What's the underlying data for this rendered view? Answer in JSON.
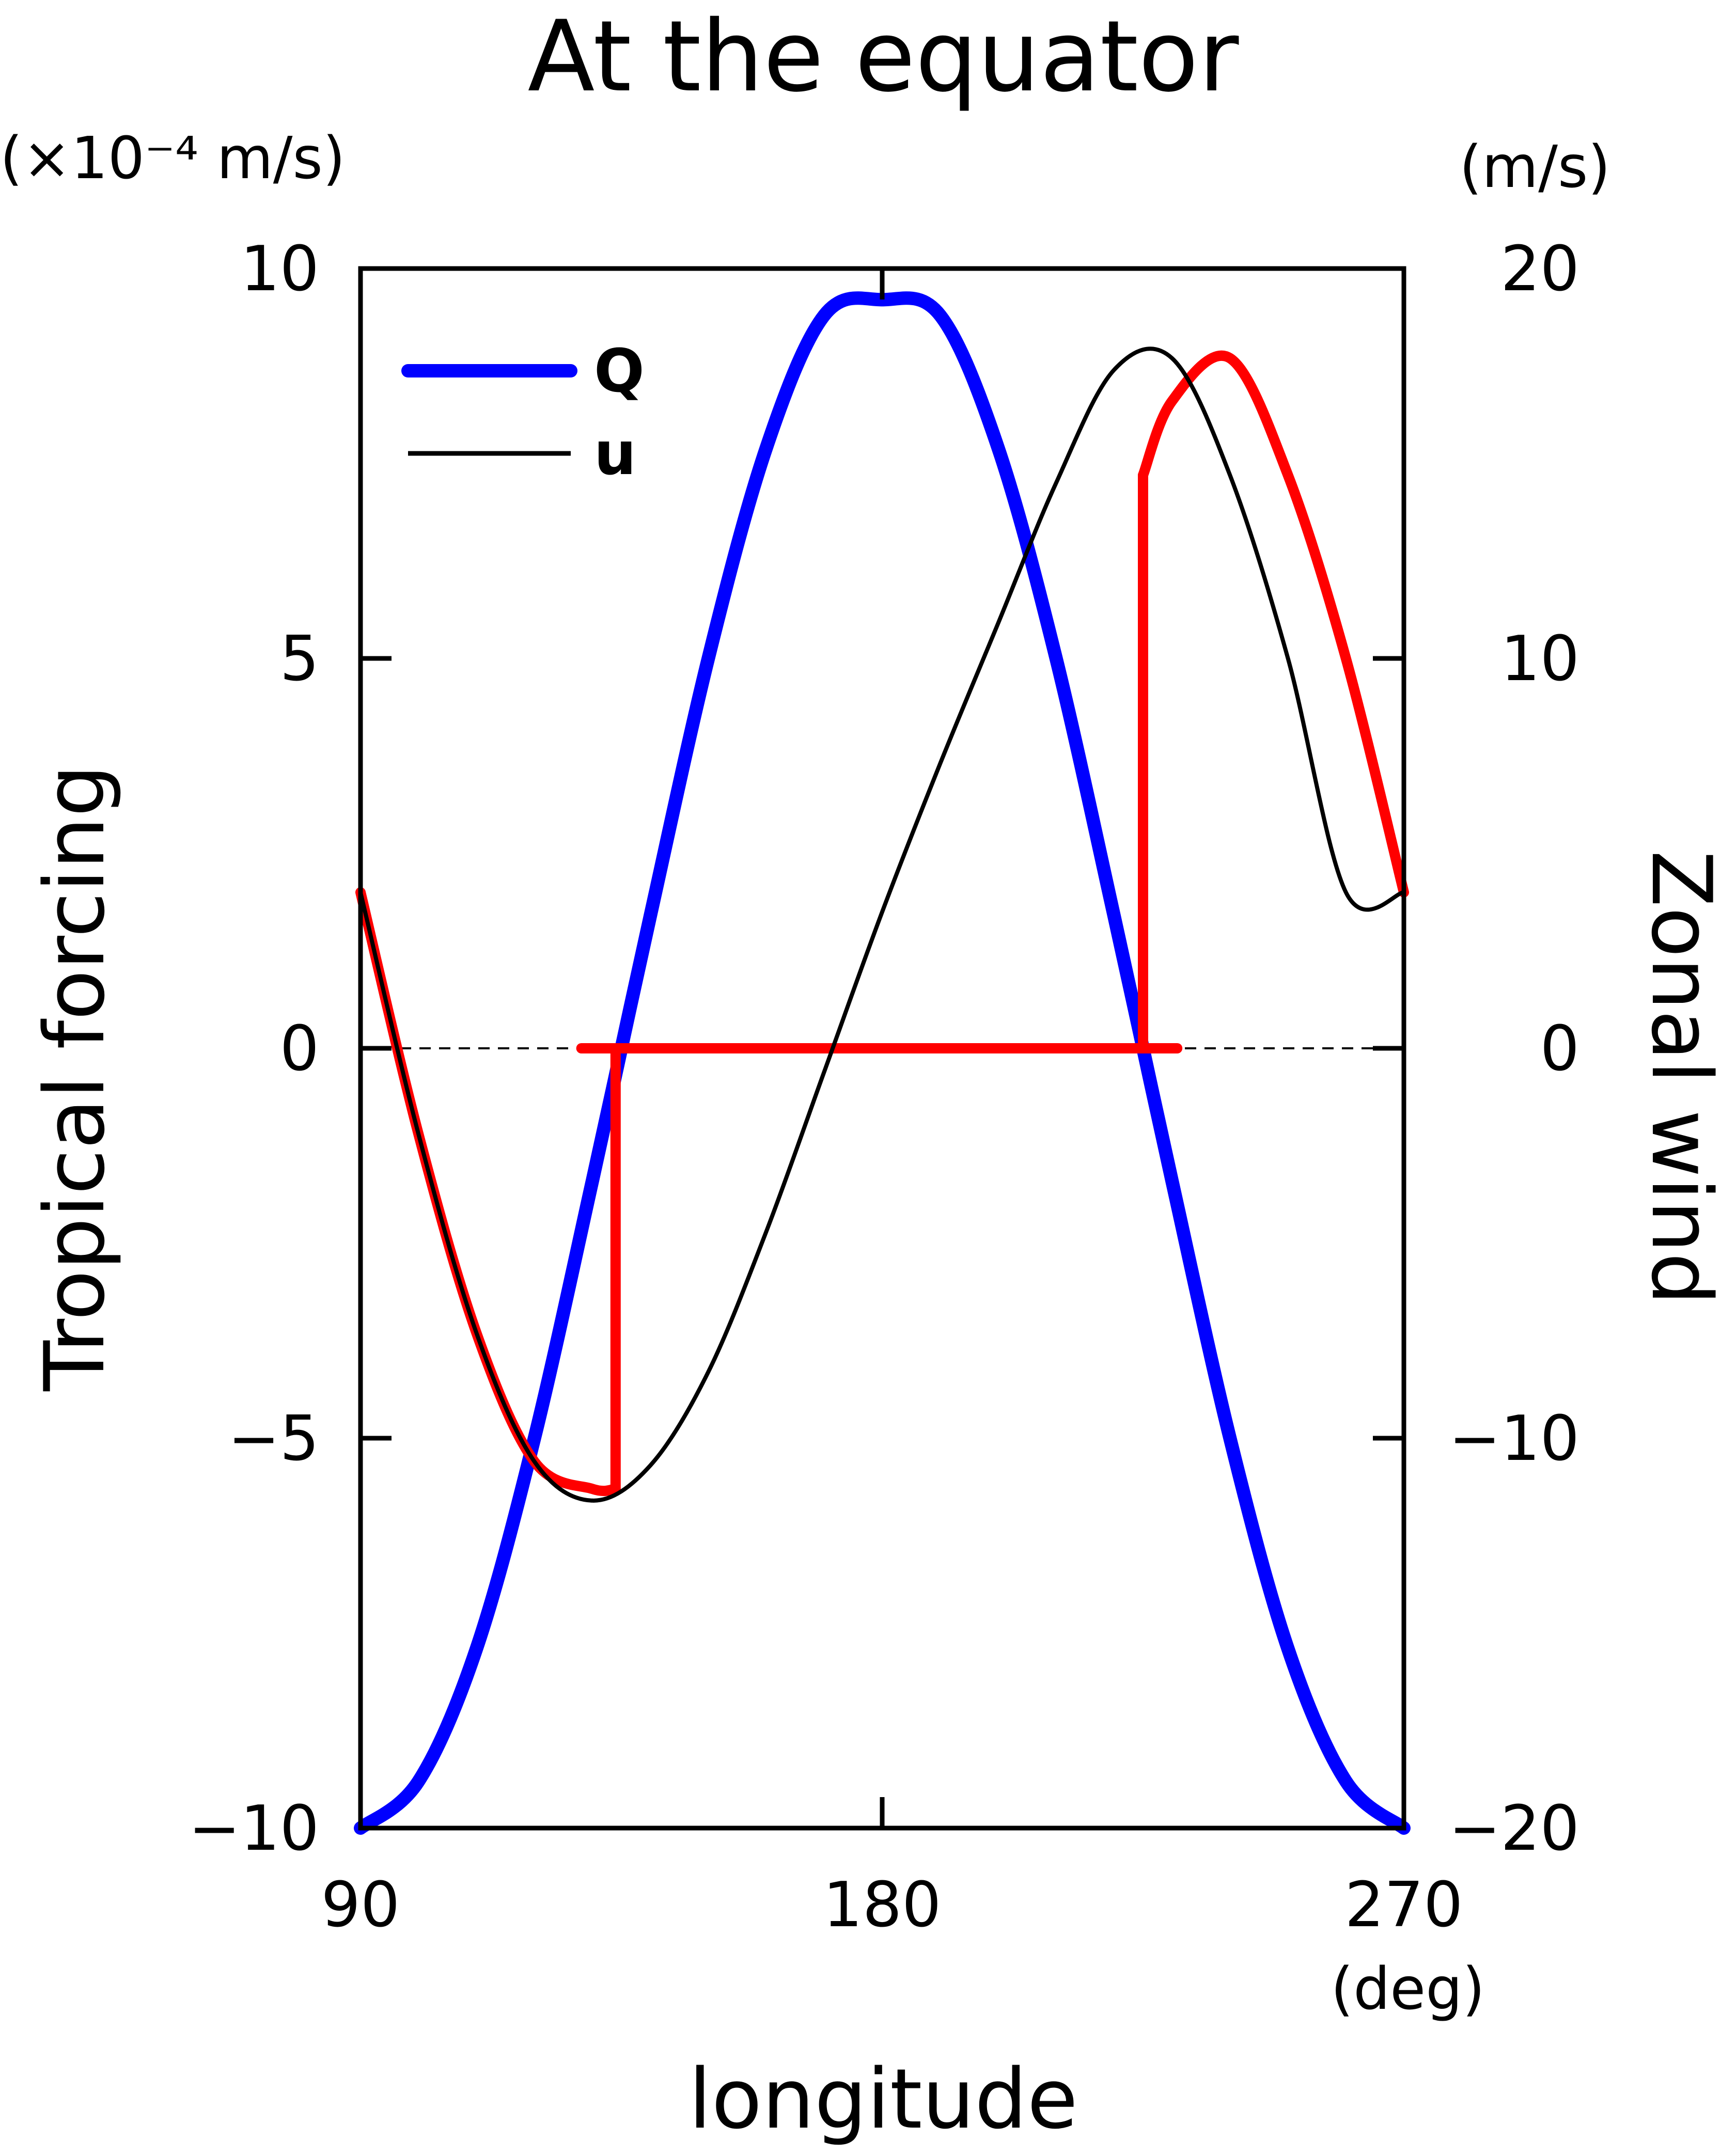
{
  "chart_data": {
    "type": "line",
    "title": "At the equator",
    "xlabel": "longitude",
    "x_unit": "(deg)",
    "ylabel_left": "Tropical forcing",
    "y_unit_left": "(×10⁻⁴ m/s)",
    "ylabel_right": "Zonal wind",
    "y_unit_right": "(m/s)",
    "xlim": [
      90,
      270
    ],
    "ylim_left": [
      -10,
      10
    ],
    "ylim_right": [
      -20,
      20
    ],
    "x_ticks": [
      "90",
      "180",
      "270"
    ],
    "y_ticks_left": [
      "10",
      "5",
      "0",
      "−5",
      "−10"
    ],
    "y_ticks_right": [
      "20",
      "10",
      "0",
      "−10",
      "−20"
    ],
    "legend_position": "top-left",
    "zero_line": "dashed",
    "series": [
      {
        "name": "Q",
        "axis": "left",
        "color": "#0000ff",
        "x": [
          90,
          100,
          110,
          120,
          130,
          135,
          140,
          150,
          160,
          170,
          180,
          190,
          200,
          210,
          220,
          225,
          230,
          240,
          250,
          260,
          270
        ],
        "y": [
          -10,
          -9.4,
          -7.7,
          -5.0,
          -1.7,
          0,
          1.7,
          5.0,
          7.7,
          9.4,
          9.6,
          9.4,
          7.7,
          5.0,
          1.7,
          0,
          -1.7,
          -5.0,
          -7.7,
          -9.4,
          -10
        ]
      },
      {
        "name": "u",
        "axis": "right",
        "color": "#000000",
        "x": [
          90,
          100,
          110,
          120,
          130,
          140,
          150,
          160,
          170,
          180,
          190,
          200,
          210,
          220,
          230,
          240,
          250,
          260,
          270
        ],
        "y": [
          4.0,
          -2.2,
          -7.3,
          -10.6,
          -11.6,
          -10.7,
          -8.3,
          -4.7,
          -0.6,
          3.5,
          7.3,
          10.9,
          14.5,
          17.4,
          17.7,
          14.7,
          10.0,
          4.0,
          4.0
        ]
      },
      {
        "axis": "right",
        "color": "#ff0000",
        "x": [
          90,
          100,
          110,
          120,
          130,
          134,
          134,
          135,
          224,
          225,
          225,
          230,
          240,
          250,
          260,
          270
        ],
        "y": [
          4.0,
          -2.2,
          -7.3,
          -10.6,
          -11.3,
          -11.3,
          0,
          0,
          0,
          0,
          14.7,
          16.6,
          17.7,
          14.7,
          10.0,
          4.0
        ]
      }
    ]
  }
}
